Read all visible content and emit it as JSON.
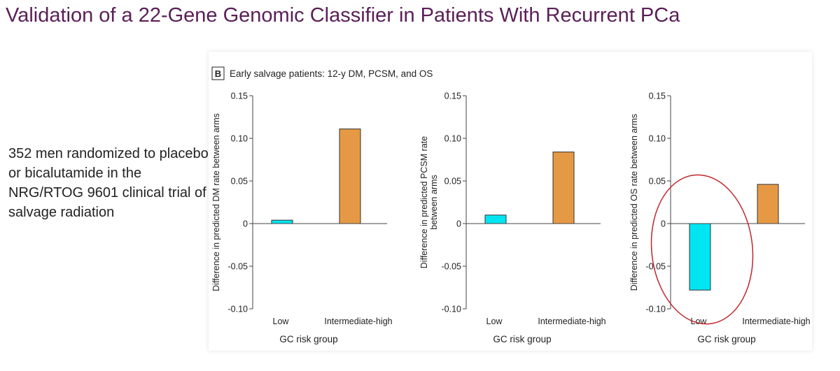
{
  "slide": {
    "title": "Validation of a 22-Gene Genomic Classifier in Patients With Recurrent PCa",
    "body_text": "352 men randomized to placebo or bicalutamide in the NRG/RTOG 9601 clinical trial of salvage radiation"
  },
  "panel": {
    "label": "B",
    "caption": "Early salvage patients: 12-y DM, PCSM, and OS"
  },
  "colors": {
    "title": "#5a1f57",
    "low_bar": "#00e5f2",
    "high_bar": "#e69944",
    "bar_stroke": "#333333",
    "highlight_circle": "#c0272d"
  },
  "chart_data": [
    {
      "type": "bar",
      "categories": [
        "Low",
        "Intermediate-high"
      ],
      "values": [
        0.004,
        0.111
      ],
      "xlabel": "GC risk group",
      "ylabel": "Difference in predicted DM rate between arms",
      "ylim": [
        -0.1,
        0.15
      ],
      "yticks": [
        "0.15",
        "0.10",
        "0.05",
        "0",
        "-0.05",
        "-0.10"
      ],
      "grid": false
    },
    {
      "type": "bar",
      "categories": [
        "Low",
        "Intermediate-high"
      ],
      "values": [
        0.01,
        0.084
      ],
      "xlabel": "GC risk group",
      "ylabel": "Difference in predicted PCSM rate between arms",
      "ylim": [
        -0.1,
        0.15
      ],
      "yticks": [
        "0.15",
        "0.10",
        "0.05",
        "0",
        "-0.05",
        "-0.10"
      ],
      "grid": false
    },
    {
      "type": "bar",
      "categories": [
        "Low",
        "Intermediate-high"
      ],
      "values": [
        -0.078,
        0.046
      ],
      "xlabel": "GC risk group",
      "ylabel": "Difference in predicted OS rate between arms",
      "ylim": [
        -0.1,
        0.15
      ],
      "yticks": [
        "0.15",
        "0.10",
        "0.05",
        "0",
        "-0.05",
        "-0.10"
      ],
      "grid": false,
      "highlight": "Low"
    }
  ]
}
